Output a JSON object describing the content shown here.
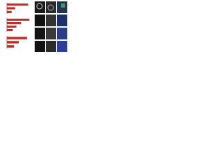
{
  "chart_data": [
    {
      "type": "hbar",
      "categories": [
        null,
        null,
        null
      ],
      "values": [
        0.9,
        0.35,
        0.2
      ],
      "color": "#c0302a",
      "xlim": [
        0,
        1
      ]
    },
    {
      "type": "hbar",
      "categories": [
        null,
        null,
        null,
        null
      ],
      "values": [
        0.95,
        0.6,
        0.4,
        0.25
      ],
      "color": "#c0302a",
      "xlim": [
        0,
        1
      ]
    },
    {
      "type": "hbar",
      "categories": [
        null,
        null,
        null
      ],
      "values": [
        0.85,
        0.5,
        0.3
      ],
      "color": "#c0302a",
      "xlim": [
        0,
        1
      ]
    }
  ]
}
